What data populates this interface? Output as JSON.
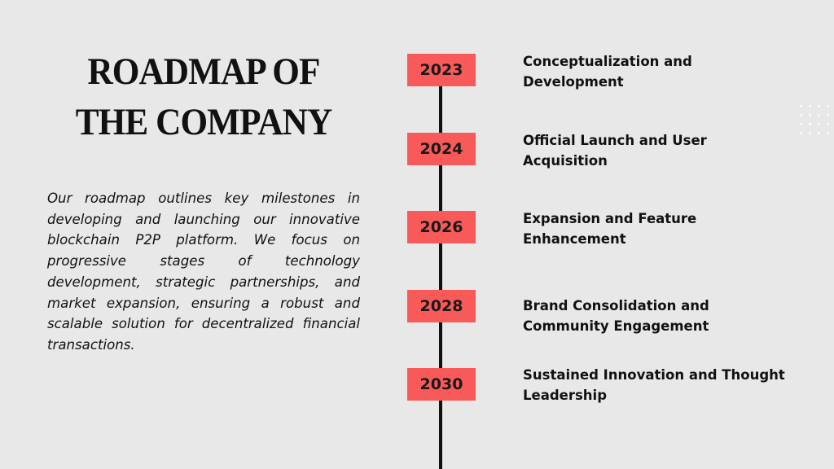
{
  "title": [
    "ROADMAP OF",
    "THE COMPANY"
  ],
  "description": "Our roadmap outlines key milestones in developing and launching our innovative blockchain P2P platform. We focus on progressive stages of technology development, strategic partnerships, and market expansion, ensuring a robust and scalable solution for decentralized financial transactions.",
  "milestones": [
    {
      "year": "2023",
      "lines": [
        "Conceptualization and",
        "Development"
      ]
    },
    {
      "year": "2024",
      "lines": [
        "Official Launch and User",
        "Acquisition"
      ]
    },
    {
      "year": "2026",
      "lines": [
        "Expansion and Feature",
        "Enhancement"
      ]
    },
    {
      "year": "2028",
      "lines": [
        "Brand Consolidation and",
        "Community Engagement"
      ]
    },
    {
      "year": "2030",
      "lines": [
        "Sustained Innovation and Thought",
        "Leadership"
      ]
    }
  ]
}
